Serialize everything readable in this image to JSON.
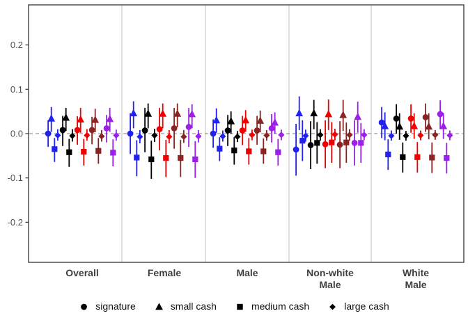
{
  "chart_data": {
    "type": "pointrange",
    "title": "",
    "xlabel": "",
    "ylabel": "",
    "ylim": [
      -0.29,
      0.29
    ],
    "yticks": [
      {
        "value": 0.2,
        "label": "0.2"
      },
      {
        "value": 0.1,
        "label": "0.1"
      },
      {
        "value": 0.0,
        "label": "0.0"
      },
      {
        "value": -0.1,
        "label": "-0.1"
      },
      {
        "value": -0.2,
        "label": "-0.2"
      }
    ],
    "zero_line": {
      "value": 0.0,
      "style": "dashed"
    },
    "legend_position": "bottom",
    "legend": [
      {
        "label": "signature",
        "marker": "circle"
      },
      {
        "label": "small cash",
        "marker": "triangle"
      },
      {
        "label": "medium cash",
        "marker": "square"
      },
      {
        "label": "large cash",
        "marker": "diamond"
      }
    ],
    "color_series": [
      "#2222EE",
      "#000000",
      "#EE0000",
      "#8B2323",
      "#9B1FE8"
    ],
    "categories": [
      {
        "key": "overall",
        "lines": [
          "Overall"
        ]
      },
      {
        "key": "female",
        "lines": [
          "Female"
        ]
      },
      {
        "key": "male",
        "lines": [
          "Male"
        ]
      },
      {
        "key": "nonwhite_male",
        "lines": [
          "Non-white",
          "Male"
        ]
      },
      {
        "key": "white_male",
        "lines": [
          "White",
          "Male"
        ]
      }
    ],
    "estimate_format": "[point, ci_low, ci_high] per color in color_series order",
    "estimates": {
      "overall": {
        "circle": [
          [
            0.0,
            -0.03,
            0.03
          ],
          [
            0.008,
            -0.028,
            0.04
          ],
          [
            0.008,
            -0.025,
            0.039
          ],
          [
            0.008,
            -0.024,
            0.038
          ],
          [
            0.012,
            -0.02,
            0.042
          ]
        ],
        "triangle": [
          [
            0.034,
            0.004,
            0.06
          ],
          [
            0.036,
            0.006,
            0.058
          ],
          [
            0.032,
            0.002,
            0.058
          ],
          [
            0.031,
            0.003,
            0.056
          ],
          [
            0.033,
            0.004,
            0.058
          ]
        ],
        "square": [
          [
            -0.035,
            -0.064,
            -0.01
          ],
          [
            -0.042,
            -0.075,
            -0.012
          ],
          [
            -0.041,
            -0.072,
            -0.012
          ],
          [
            -0.039,
            -0.068,
            -0.01
          ],
          [
            -0.043,
            -0.074,
            -0.013
          ]
        ],
        "diamond": [
          [
            -0.004,
            -0.016,
            0.01
          ],
          [
            -0.005,
            -0.018,
            0.01
          ],
          [
            -0.004,
            -0.016,
            0.01
          ],
          [
            -0.006,
            -0.018,
            0.008
          ],
          [
            -0.004,
            -0.016,
            0.009
          ]
        ]
      },
      "female": {
        "circle": [
          [
            0.0,
            -0.046,
            0.046
          ],
          [
            0.007,
            -0.042,
            0.058
          ],
          [
            0.01,
            -0.038,
            0.058
          ],
          [
            0.012,
            -0.034,
            0.058
          ],
          [
            0.015,
            -0.03,
            0.058
          ]
        ],
        "triangle": [
          [
            0.046,
            0.012,
            0.073
          ],
          [
            0.045,
            0.012,
            0.068
          ],
          [
            0.045,
            0.012,
            0.068
          ],
          [
            0.045,
            0.014,
            0.068
          ],
          [
            0.044,
            0.012,
            0.066
          ]
        ],
        "square": [
          [
            -0.054,
            -0.096,
            -0.015
          ],
          [
            -0.058,
            -0.102,
            -0.016
          ],
          [
            -0.055,
            -0.098,
            -0.014
          ],
          [
            -0.055,
            -0.098,
            -0.014
          ],
          [
            -0.058,
            -0.1,
            -0.017
          ]
        ],
        "diamond": [
          [
            -0.007,
            -0.022,
            0.008
          ],
          [
            -0.004,
            -0.019,
            0.011
          ],
          [
            -0.007,
            -0.022,
            0.008
          ],
          [
            -0.007,
            -0.021,
            0.008
          ],
          [
            -0.006,
            -0.02,
            0.008
          ]
        ]
      },
      "male": {
        "circle": [
          [
            0.0,
            -0.032,
            0.032
          ],
          [
            0.007,
            -0.028,
            0.042
          ],
          [
            0.007,
            -0.026,
            0.04
          ],
          [
            0.007,
            -0.025,
            0.04
          ],
          [
            0.012,
            -0.02,
            0.044
          ]
        ],
        "triangle": [
          [
            0.03,
            0.002,
            0.057
          ],
          [
            0.028,
            0.0,
            0.05
          ],
          [
            0.03,
            0.004,
            0.053
          ],
          [
            0.029,
            0.003,
            0.052
          ],
          [
            0.025,
            0.0,
            0.048
          ]
        ],
        "square": [
          [
            -0.034,
            -0.062,
            -0.008
          ],
          [
            -0.038,
            -0.07,
            -0.008
          ],
          [
            -0.04,
            -0.07,
            -0.01
          ],
          [
            -0.04,
            -0.068,
            -0.011
          ],
          [
            -0.042,
            -0.072,
            -0.012
          ]
        ],
        "diamond": [
          [
            -0.006,
            -0.018,
            0.007
          ],
          [
            -0.007,
            -0.019,
            0.006
          ],
          [
            -0.003,
            -0.015,
            0.009
          ],
          [
            -0.004,
            -0.016,
            0.008
          ],
          [
            -0.003,
            -0.015,
            0.009
          ]
        ]
      },
      "nonwhite_male": {
        "circle": [
          [
            -0.036,
            -0.095,
            0.022
          ],
          [
            -0.026,
            -0.08,
            0.028
          ],
          [
            -0.024,
            -0.078,
            0.03
          ],
          [
            -0.025,
            -0.078,
            0.028
          ],
          [
            -0.021,
            -0.072,
            0.03
          ]
        ],
        "triangle": [
          [
            0.046,
            0.008,
            0.084
          ],
          [
            0.046,
            0.01,
            0.076
          ],
          [
            0.044,
            0.008,
            0.077
          ],
          [
            0.042,
            0.006,
            0.076
          ],
          [
            0.038,
            0.002,
            0.072
          ]
        ],
        "square": [
          [
            -0.016,
            -0.062,
            0.03
          ],
          [
            -0.021,
            -0.068,
            0.026
          ],
          [
            -0.02,
            -0.066,
            0.026
          ],
          [
            -0.02,
            -0.066,
            0.025
          ],
          [
            -0.021,
            -0.066,
            0.024
          ]
        ],
        "diamond": [
          [
            -0.005,
            -0.018,
            0.009
          ],
          [
            -0.003,
            -0.016,
            0.01
          ],
          [
            -0.002,
            -0.015,
            0.011
          ],
          [
            -0.003,
            -0.016,
            0.01
          ],
          [
            -0.003,
            -0.015,
            0.01
          ]
        ]
      },
      "white_male": {
        "circle": [
          [
            0.025,
            -0.01,
            0.06
          ],
          [
            0.034,
            0.0,
            0.066
          ],
          [
            0.034,
            0.002,
            0.066
          ],
          [
            0.037,
            0.004,
            0.068
          ],
          [
            0.044,
            0.01,
            0.075
          ]
        ],
        "triangle": [
          [
            0.017,
            -0.015,
            0.048
          ],
          [
            0.016,
            -0.014,
            0.046
          ],
          [
            0.017,
            -0.012,
            0.046
          ],
          [
            0.016,
            -0.013,
            0.046
          ],
          [
            0.017,
            -0.012,
            0.047
          ]
        ],
        "square": [
          [
            -0.047,
            -0.082,
            -0.013
          ],
          [
            -0.053,
            -0.088,
            -0.02
          ],
          [
            -0.053,
            -0.088,
            -0.019
          ],
          [
            -0.054,
            -0.089,
            -0.02
          ],
          [
            -0.055,
            -0.09,
            -0.021
          ]
        ],
        "diamond": [
          [
            -0.005,
            -0.016,
            0.007
          ],
          [
            -0.005,
            -0.016,
            0.006
          ],
          [
            -0.004,
            -0.015,
            0.007
          ],
          [
            -0.003,
            -0.014,
            0.008
          ],
          [
            -0.004,
            -0.015,
            0.007
          ]
        ]
      }
    }
  },
  "colors": {
    "axis_text": "#4D4D4D",
    "category_text": "#404040",
    "panel_border": "#333333",
    "separator": "#CCCCCC",
    "zero_line": "#999999",
    "legend_text": "#111111",
    "background": "#FFFFFF"
  }
}
